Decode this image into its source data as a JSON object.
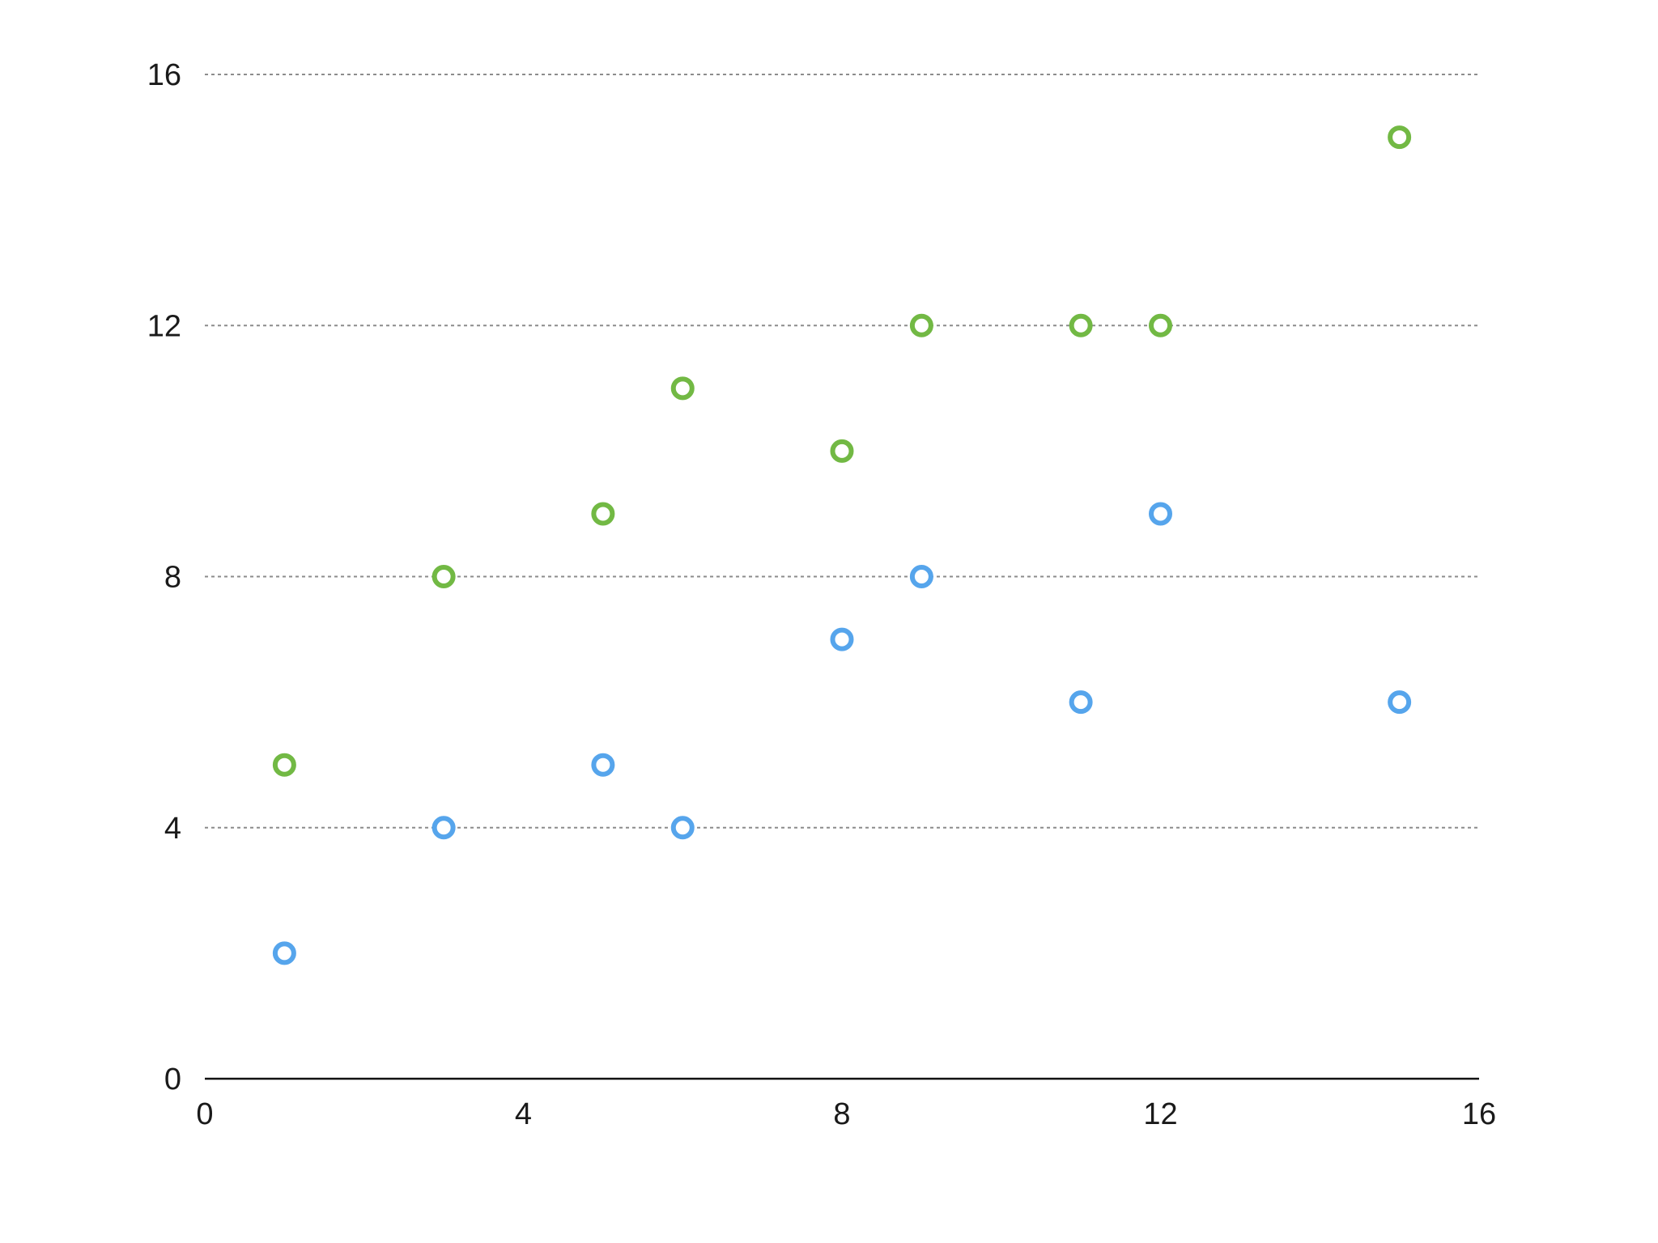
{
  "chart_data": {
    "type": "scatter",
    "title": "",
    "xlabel": "",
    "ylabel": "",
    "xlim": [
      0,
      16
    ],
    "ylim": [
      0,
      16
    ],
    "x_ticks": [
      "0",
      "4",
      "8",
      "12",
      "16"
    ],
    "y_ticks": [
      "0",
      "4",
      "8",
      "12",
      "16"
    ],
    "grid": "horizontal dashed",
    "legend": "none",
    "series": [
      {
        "color": "#72b944",
        "points": [
          {
            "x": 1,
            "y": 5
          },
          {
            "x": 3,
            "y": 8
          },
          {
            "x": 5,
            "y": 9
          },
          {
            "x": 6,
            "y": 11
          },
          {
            "x": 8,
            "y": 10
          },
          {
            "x": 9,
            "y": 12
          },
          {
            "x": 11,
            "y": 12
          },
          {
            "x": 12,
            "y": 12
          },
          {
            "x": 15,
            "y": 15
          }
        ]
      },
      {
        "color": "#56a5ec",
        "points": [
          {
            "x": 1,
            "y": 2
          },
          {
            "x": 3,
            "y": 4
          },
          {
            "x": 5,
            "y": 5
          },
          {
            "x": 6,
            "y": 4
          },
          {
            "x": 8,
            "y": 7
          },
          {
            "x": 9,
            "y": 8
          },
          {
            "x": 11,
            "y": 6
          },
          {
            "x": 12,
            "y": 9
          },
          {
            "x": 15,
            "y": 6
          }
        ]
      }
    ]
  }
}
